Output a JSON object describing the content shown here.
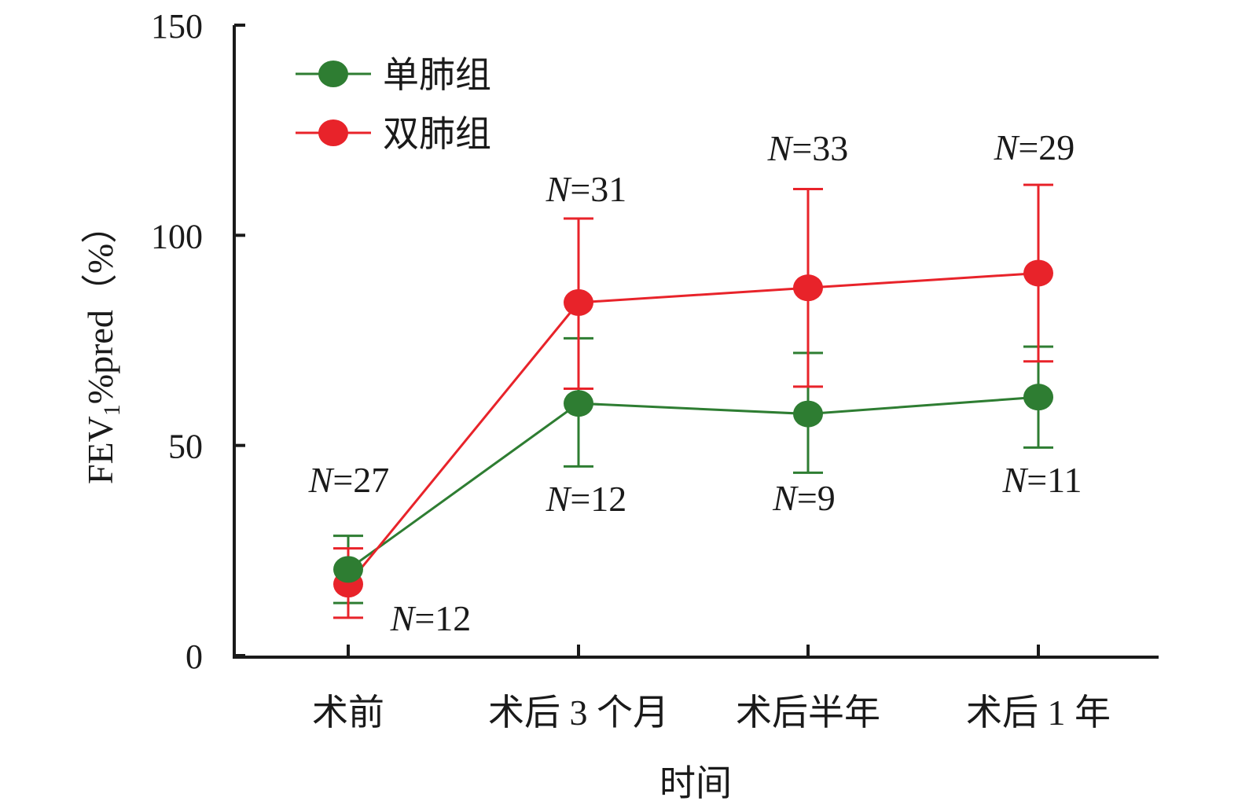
{
  "chart_data": {
    "type": "line",
    "xlabel": "时间",
    "ylabel": {
      "prefix": "FEV",
      "subscript": "1",
      "suffix": "%pred（%）"
    },
    "ylim": [
      0,
      150
    ],
    "yticks": [
      "0",
      "50",
      "100",
      "150"
    ],
    "categories": [
      "术前",
      "术后 3 个月",
      "术后半年",
      "术后 1 年"
    ],
    "legend_position": "top-left",
    "grid": false,
    "series": [
      {
        "name": "单肺组",
        "color": "#2e7d32",
        "values": [
          20.5,
          60,
          57.5,
          61.5
        ],
        "error_upper": [
          28.5,
          75.5,
          72,
          73.5
        ],
        "error_lower": [
          12.5,
          45,
          43.5,
          49.5
        ],
        "n_labels": [
          "N=12",
          "N=12",
          "N=9",
          "N=11"
        ]
      },
      {
        "name": "双肺组",
        "color": "#e8232a",
        "values": [
          17,
          84,
          87.5,
          91
        ],
        "error_upper": [
          25.5,
          104,
          111,
          112
        ],
        "error_lower": [
          9,
          63.5,
          64,
          70
        ],
        "n_labels": [
          "N=27",
          "N=31",
          "N=33",
          "N=29"
        ]
      }
    ]
  }
}
